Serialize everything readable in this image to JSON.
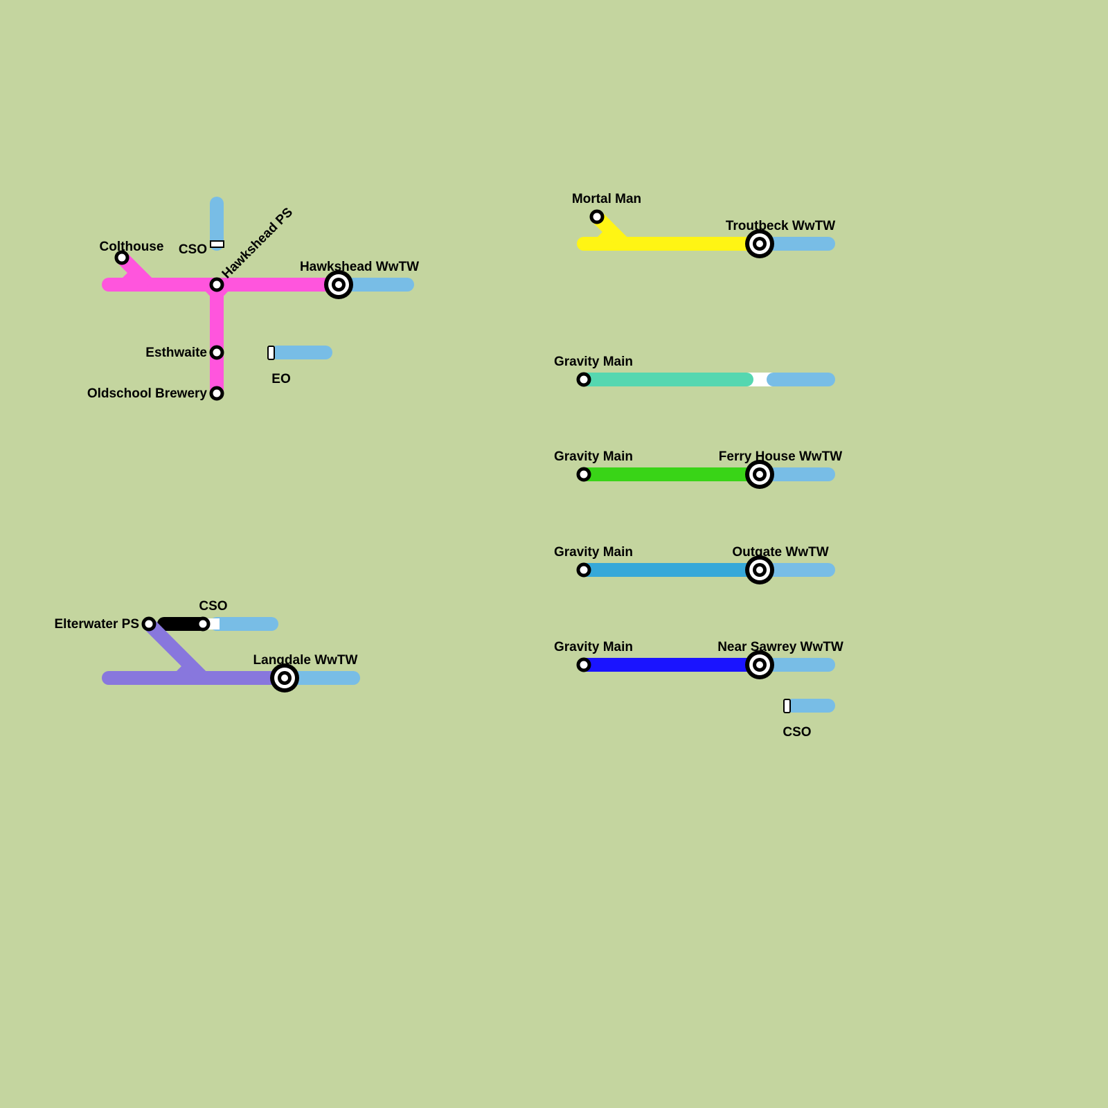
{
  "colors": {
    "background": "#c4d59f",
    "outfall": "#78bde6",
    "hawkshead": "#ff55dd",
    "langdale": "#8877dd",
    "rising_main": "#000000",
    "troutbeck": "#fff514",
    "gravity_teal": "#55d7b0",
    "ferry_house": "#39d417",
    "outgate": "#36a8d9",
    "near_sawrey": "#1a14ff"
  },
  "hawkshead": {
    "colthouse": "Colthouse",
    "cso": "CSO",
    "ps": "Hawkshead PS",
    "wwtw": "Hawkshead WwTW",
    "esthwaite": "Esthwaite",
    "brewery": "Oldschool Brewery",
    "eo": "EO"
  },
  "langdale": {
    "ps": "Elterwater PS",
    "cso": "CSO",
    "wwtw": "Langdale WwTW"
  },
  "troutbeck": {
    "source": "Mortal Man",
    "wwtw": "Troutbeck WwTW"
  },
  "teal": {
    "source": "Gravity Main"
  },
  "ferry": {
    "source": "Gravity Main",
    "wwtw": "Ferry House WwTW"
  },
  "outgate": {
    "source": "Gravity Main",
    "wwtw": "Outgate WwTW"
  },
  "sawrey": {
    "source": "Gravity Main",
    "wwtw": "Near Sawrey WwTW",
    "cso": "CSO"
  }
}
